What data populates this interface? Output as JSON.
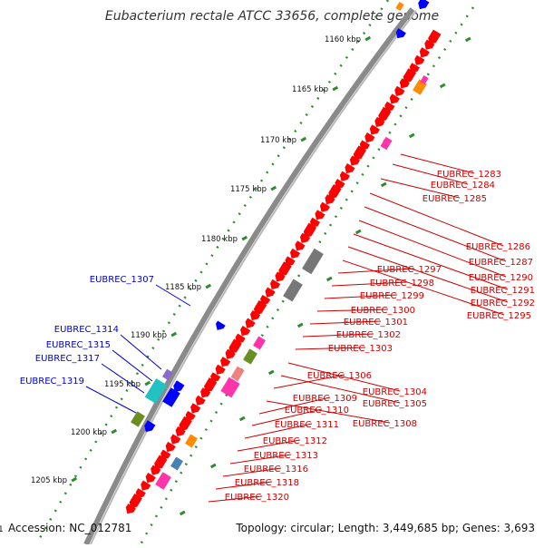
{
  "map": {
    "title": "Eubacterium rectale ATCC 33656, complete genome",
    "accession": "Accession: NC_012781",
    "summary": "Topology: circular; Length: 3,449,685 bp; Genes: 3,693",
    "edge_label": "1",
    "kbp_labels": [
      "1160 kbp",
      "1165 kbp",
      "1170 kbp",
      "1175 kbp",
      "1180 kbp",
      "1185 kbp",
      "1190 kbp",
      "1195 kbp",
      "1200 kbp",
      "1205 kbp"
    ]
  },
  "labels_right": [
    "EUBREC_1283",
    "EUBREC_1284",
    "EUBREC_1285",
    "EUBREC_1286",
    "EUBREC_1287",
    "EUBREC_1290",
    "EUBREC_1291",
    "EUBREC_1292",
    "EUBREC_1295",
    "EUBREC_1297",
    "EUBREC_1298",
    "EUBREC_1299",
    "EUBREC_1300",
    "EUBREC_1301",
    "EUBREC_1302",
    "EUBREC_1303",
    "EUBREC_1304",
    "EUBREC_1305",
    "EUBREC_1306",
    "EUBREC_1308",
    "EUBREC_1309",
    "EUBREC_1310",
    "EUBREC_1311",
    "EUBREC_1312",
    "EUBREC_1313",
    "EUBREC_1316",
    "EUBREC_1318",
    "EUBREC_1320"
  ],
  "labels_left": [
    "EUBREC_1307",
    "EUBREC_1314",
    "EUBREC_1315",
    "EUBREC_1317",
    "EUBREC_1319"
  ],
  "colors": {
    "forward_cds": "#ff0000",
    "reverse_cds": "#0000ff",
    "tick_green": "#2e8b2e",
    "backbone": "#8a8a8a",
    "label_right": "#cc0000",
    "label_left": "#0000cc"
  }
}
